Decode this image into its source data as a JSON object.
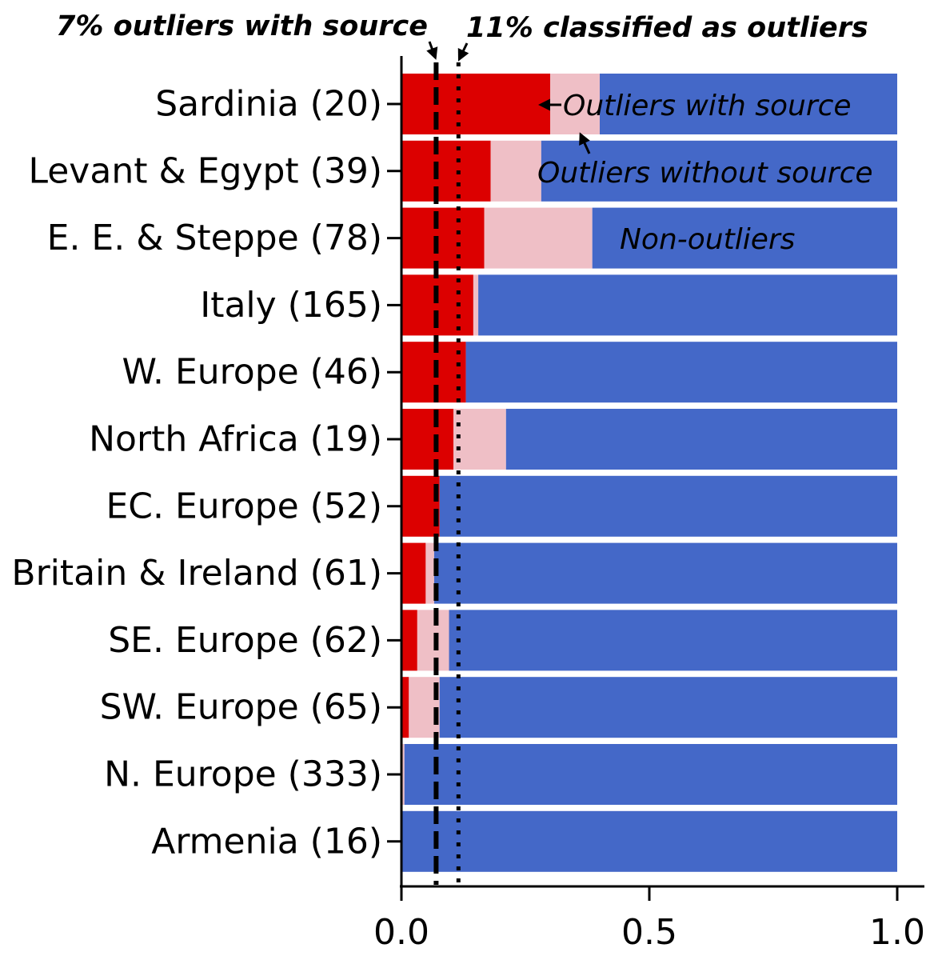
{
  "chart_data": {
    "type": "bar",
    "orientation": "horizontal",
    "stacked": true,
    "categories": [
      "Sardinia (20)",
      "Levant & Egypt (39)",
      "E. E. & Steppe (78)",
      "Italy (165)",
      "W. Europe (46)",
      "North Africa (19)",
      "EC. Europe (52)",
      "Britain & Ireland (61)",
      "SE. Europe (62)",
      "SW. Europe (65)",
      "N. Europe (333)",
      "Armenia (16)"
    ],
    "series": [
      {
        "name": "Outliers with source",
        "color": "#dc0000",
        "values": [
          0.3,
          0.18,
          0.167,
          0.145,
          0.13,
          0.105,
          0.077,
          0.049,
          0.032,
          0.015,
          0.0,
          0.0
        ]
      },
      {
        "name": "Outliers without source",
        "color": "#efbfc6",
        "values": [
          0.1,
          0.102,
          0.218,
          0.01,
          0.0,
          0.106,
          0.0,
          0.017,
          0.064,
          0.062,
          0.006,
          0.0
        ]
      },
      {
        "name": "Non-outliers",
        "color": "#4468c8",
        "values": [
          0.6,
          0.718,
          0.615,
          0.845,
          0.87,
          0.789,
          0.923,
          0.934,
          0.904,
          0.923,
          0.994,
          1.0
        ]
      }
    ],
    "xlim": [
      0.0,
      1.05
    ],
    "xticks": [
      "0.0",
      "0.5",
      "1.0"
    ],
    "reference_lines": [
      {
        "label": "7% outliers with source",
        "x": 0.07,
        "style": "dashed"
      },
      {
        "label": "11% classified as outliers",
        "x": 0.115,
        "style": "dotted"
      }
    ],
    "grid": false,
    "legend": "in-bar annotations"
  }
}
